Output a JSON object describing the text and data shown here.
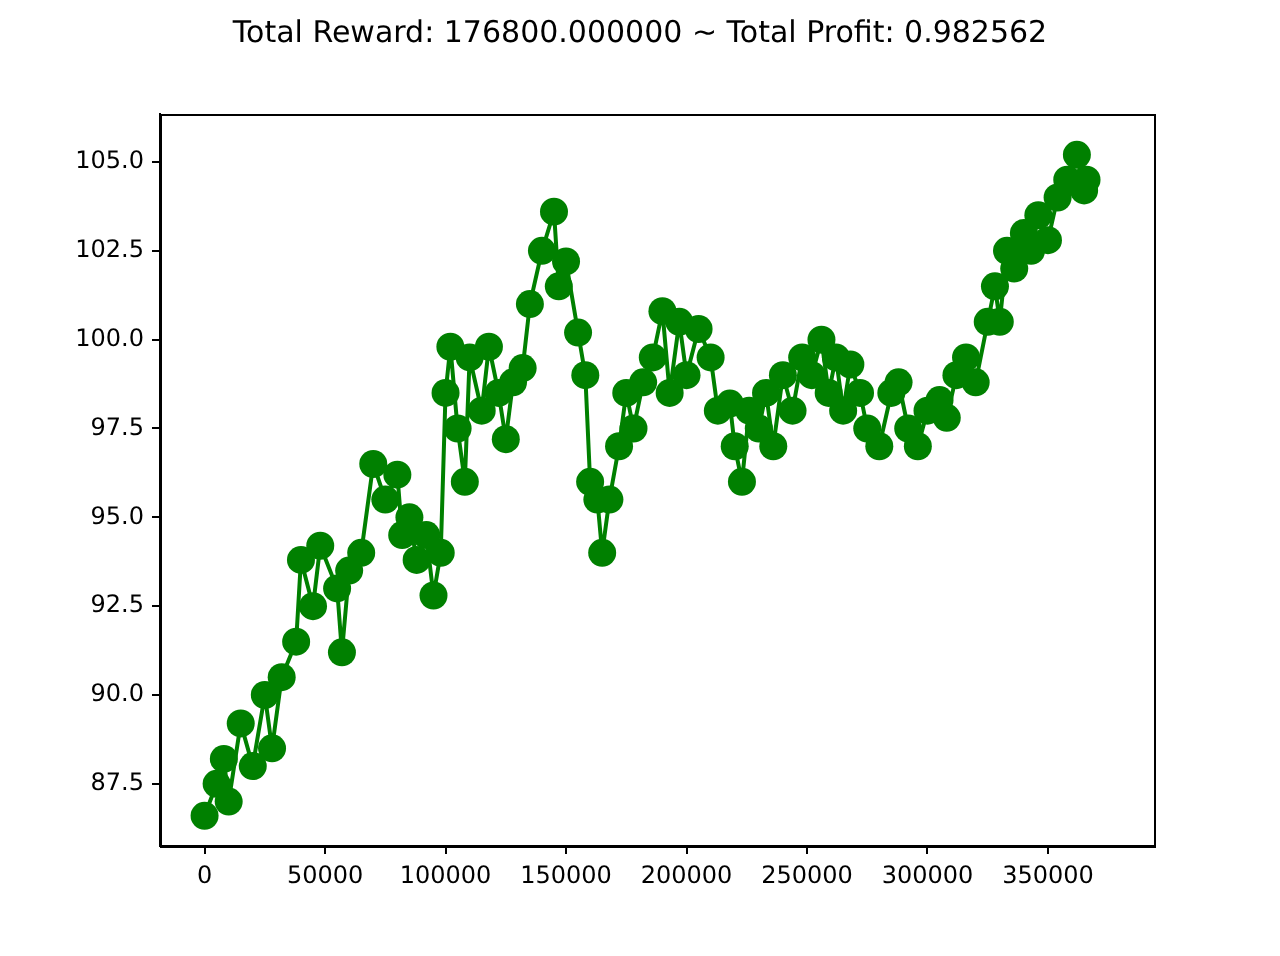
{
  "chart_data": {
    "type": "line",
    "title": "Total Reward: 176800.000000 ~ Total Profit: 0.982562",
    "x": [
      0,
      5000,
      8000,
      10000,
      15000,
      20000,
      25000,
      28000,
      32000,
      38000,
      40000,
      45000,
      48000,
      55000,
      57000,
      60000,
      65000,
      70000,
      75000,
      80000,
      82000,
      85000,
      88000,
      92000,
      95000,
      98000,
      100000,
      102000,
      105000,
      108000,
      110000,
      115000,
      118000,
      122000,
      125000,
      128000,
      132000,
      135000,
      140000,
      145000,
      147000,
      150000,
      155000,
      158000,
      160000,
      163000,
      165000,
      168000,
      172000,
      175000,
      178000,
      182000,
      186000,
      190000,
      193000,
      197000,
      200000,
      205000,
      210000,
      213000,
      218000,
      220000,
      223000,
      226000,
      230000,
      233000,
      236000,
      240000,
      244000,
      248000,
      252000,
      256000,
      259000,
      262000,
      265000,
      268000,
      272000,
      275000,
      280000,
      285000,
      288000,
      292000,
      296000,
      300000,
      305000,
      308000,
      312000,
      316000,
      320000,
      325000,
      328000,
      330000,
      333000,
      336000,
      340000,
      343000,
      346000,
      350000,
      354000,
      358000,
      362000,
      365000,
      366000
    ],
    "series": [
      {
        "color": "#008000",
        "values": [
          86.6,
          87.5,
          88.2,
          87.0,
          89.2,
          88.0,
          90.0,
          88.5,
          90.5,
          91.5,
          93.8,
          92.5,
          94.2,
          93.0,
          91.2,
          93.5,
          94.0,
          96.5,
          95.5,
          96.2,
          94.5,
          95.0,
          93.8,
          94.5,
          92.8,
          94.0,
          98.5,
          99.8,
          97.5,
          96.0,
          99.5,
          98.0,
          99.8,
          98.5,
          97.2,
          98.8,
          99.2,
          101.0,
          102.5,
          103.6,
          101.5,
          102.2,
          100.2,
          99.0,
          96.0,
          95.5,
          94.0,
          95.5,
          97.0,
          98.5,
          97.5,
          98.8,
          99.5,
          100.8,
          98.5,
          100.5,
          99.0,
          100.3,
          99.5,
          98.0,
          98.2,
          97.0,
          96.0,
          98.0,
          97.5,
          98.5,
          97.0,
          99.0,
          98.0,
          99.5,
          99.0,
          100.0,
          98.5,
          99.5,
          98.0,
          99.3,
          98.5,
          97.5,
          97.0,
          98.5,
          98.8,
          97.5,
          97.0,
          98.0,
          98.3,
          97.8,
          99.0,
          99.5,
          98.8,
          100.5,
          101.5,
          100.5,
          102.5,
          102.0,
          103.0,
          102.5,
          103.5,
          102.8,
          104.0,
          104.5,
          105.2,
          104.2,
          104.5
        ]
      }
    ],
    "marker": "circle",
    "xlim": [
      -18500,
      394000
    ],
    "xticks": [
      0,
      50000,
      100000,
      150000,
      200000,
      250000,
      300000,
      350000
    ],
    "ylim": [
      85.75,
      106.35
    ],
    "yticks": [
      87.5,
      {
        "value": 90,
        "label": "90.0"
      },
      92.5,
      {
        "value": 95,
        "label": "95.0"
      },
      97.5,
      {
        "value": 100,
        "label": "100.0"
      },
      102.5,
      {
        "value": 105,
        "label": "105.0"
      }
    ]
  }
}
